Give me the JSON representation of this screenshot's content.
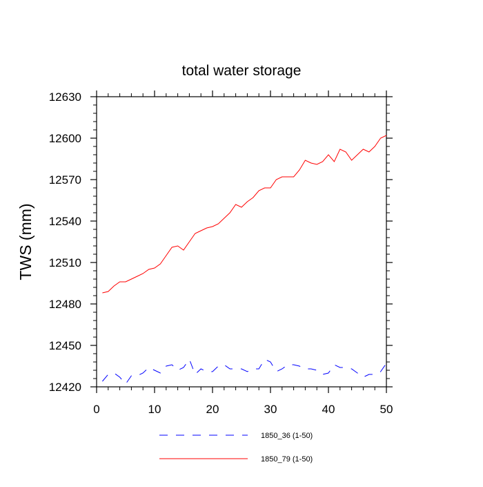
{
  "chart_data": {
    "type": "line",
    "title": "total water storage",
    "xlabel": "",
    "ylabel": "TWS  (mm)",
    "xlim": [
      0,
      50
    ],
    "ylim": [
      12420,
      12630
    ],
    "xticks": [
      0,
      10,
      20,
      30,
      40,
      50
    ],
    "yticks": [
      12420,
      12450,
      12480,
      12510,
      12540,
      12570,
      12600,
      12630
    ],
    "grid": false,
    "legend_position": "bottom",
    "series": [
      {
        "name": "1850_36 (1-50)",
        "color": "#0000ff",
        "dash": "dashed",
        "x": [
          1,
          2,
          3,
          4,
          5,
          6,
          7,
          8,
          9,
          10,
          11,
          12,
          13,
          14,
          15,
          16,
          17,
          18,
          19,
          20,
          21,
          22,
          23,
          24,
          25,
          26,
          27,
          28,
          29,
          30,
          31,
          32,
          33,
          34,
          35,
          36,
          37,
          38,
          39,
          40,
          41,
          42,
          43,
          44,
          45,
          46,
          47,
          48,
          49,
          50
        ],
        "values": [
          12424,
          12429,
          12430,
          12427,
          12422,
          12428,
          12428,
          12430,
          12434,
          12432,
          12430,
          12435,
          12436,
          12432,
          12434,
          12440,
          12429,
          12433,
          12431,
          12431,
          12435,
          12436,
          12433,
          12433,
          12433,
          12431,
          12433,
          12433,
          12440,
          12438,
          12431,
          12433,
          12436,
          12436,
          12435,
          12433,
          12433,
          12432,
          12429,
          12430,
          12436,
          12434,
          12434,
          12433,
          12430,
          12427,
          12429,
          12429,
          12431,
          12437
        ]
      },
      {
        "name": "1850_79 (1-50)",
        "color": "#ff0000",
        "dash": "solid",
        "x": [
          1,
          2,
          3,
          4,
          5,
          6,
          7,
          8,
          9,
          10,
          11,
          12,
          13,
          14,
          15,
          16,
          17,
          18,
          19,
          20,
          21,
          22,
          23,
          24,
          25,
          26,
          27,
          28,
          29,
          30,
          31,
          32,
          33,
          34,
          35,
          36,
          37,
          38,
          39,
          40,
          41,
          42,
          43,
          44,
          45,
          46,
          47,
          48,
          49,
          50
        ],
        "values": [
          12488,
          12489,
          12493,
          12496,
          12496,
          12498,
          12500,
          12502,
          12505,
          12506,
          12509,
          12515,
          12521,
          12522,
          12519,
          12525,
          12531,
          12533,
          12535,
          12536,
          12538,
          12542,
          12546,
          12552,
          12550,
          12554,
          12557,
          12562,
          12564,
          12564,
          12570,
          12572,
          12572,
          12572,
          12577,
          12584,
          12582,
          12581,
          12583,
          12588,
          12583,
          12592,
          12590,
          12584,
          12588,
          12592,
          12590,
          12594,
          12600,
          12602
        ]
      }
    ]
  }
}
